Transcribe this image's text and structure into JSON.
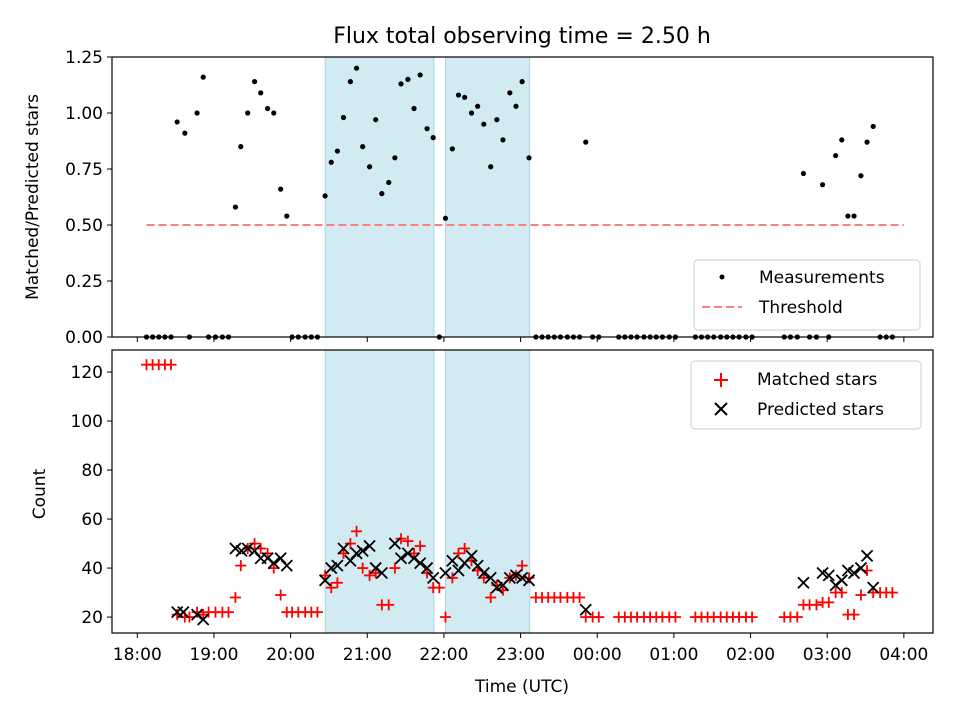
{
  "chart_data": {
    "type": "scatter",
    "title": "Flux total observing time = 2.50 h",
    "xlabel": "Time (UTC)",
    "x_ticks": [
      {
        "h": 18,
        "label": "18:00"
      },
      {
        "h": 19,
        "label": "19:00"
      },
      {
        "h": 20,
        "label": "20:00"
      },
      {
        "h": 21,
        "label": "21:00"
      },
      {
        "h": 22,
        "label": "22:00"
      },
      {
        "h": 23,
        "label": "23:00"
      },
      {
        "h": 24,
        "label": "00:00"
      },
      {
        "h": 25,
        "label": "01:00"
      },
      {
        "h": 26,
        "label": "02:00"
      },
      {
        "h": 27,
        "label": "03:00"
      },
      {
        "h": 28,
        "label": "04:00"
      }
    ],
    "xlim_hours": [
      17.67,
      28.38
    ],
    "shaded_intervals_hours": [
      [
        20.45,
        21.87
      ],
      [
        22.02,
        23.12
      ]
    ],
    "top": {
      "ylabel": "Matched/Predicted stars",
      "ylim": [
        0,
        1.25
      ],
      "yticks": [
        "0.00",
        "0.25",
        "0.50",
        "0.75",
        "1.00",
        "1.25"
      ],
      "threshold": {
        "value": 0.5,
        "x_range": [
          18.12,
          28.0
        ],
        "color": "#ff7f7f"
      },
      "legend": [
        "Measurements",
        "Threshold"
      ],
      "measurements": [
        [
          18.12,
          0
        ],
        [
          18.2,
          0
        ],
        [
          18.28,
          0
        ],
        [
          18.36,
          0
        ],
        [
          18.44,
          0
        ],
        [
          18.52,
          0.96
        ],
        [
          18.62,
          0.91
        ],
        [
          18.68,
          0
        ],
        [
          18.78,
          1.0
        ],
        [
          18.86,
          1.16
        ],
        [
          18.93,
          0
        ],
        [
          19.02,
          0
        ],
        [
          19.11,
          0
        ],
        [
          19.19,
          0
        ],
        [
          19.28,
          0.58
        ],
        [
          19.35,
          0.85
        ],
        [
          19.44,
          1.0
        ],
        [
          19.53,
          1.14
        ],
        [
          19.61,
          1.09
        ],
        [
          19.7,
          1.02
        ],
        [
          19.78,
          1.0
        ],
        [
          19.87,
          0.66
        ],
        [
          19.95,
          0.54
        ],
        [
          20.02,
          0
        ],
        [
          20.1,
          0
        ],
        [
          20.19,
          0
        ],
        [
          20.27,
          0
        ],
        [
          20.35,
          0
        ],
        [
          20.45,
          0.63
        ],
        [
          20.53,
          0.78
        ],
        [
          20.61,
          0.83
        ],
        [
          20.69,
          0.98
        ],
        [
          20.78,
          1.14
        ],
        [
          20.86,
          1.2
        ],
        [
          20.94,
          0.85
        ],
        [
          21.03,
          0.76
        ],
        [
          21.11,
          0.97
        ],
        [
          21.19,
          0.64
        ],
        [
          21.28,
          0.69
        ],
        [
          21.36,
          0.8
        ],
        [
          21.44,
          1.13
        ],
        [
          21.53,
          1.15
        ],
        [
          21.61,
          1.02
        ],
        [
          21.69,
          1.17
        ],
        [
          21.78,
          0.93
        ],
        [
          21.86,
          0.89
        ],
        [
          21.94,
          0
        ],
        [
          22.02,
          0.53
        ],
        [
          22.11,
          0.84
        ],
        [
          22.19,
          1.08
        ],
        [
          22.27,
          1.07
        ],
        [
          22.36,
          1.0
        ],
        [
          22.44,
          1.03
        ],
        [
          22.52,
          0.95
        ],
        [
          22.61,
          0.76
        ],
        [
          22.69,
          0.97
        ],
        [
          22.77,
          0.88
        ],
        [
          22.86,
          1.09
        ],
        [
          22.94,
          1.03
        ],
        [
          23.02,
          1.14
        ],
        [
          23.11,
          0.8
        ],
        [
          23.2,
          0
        ],
        [
          23.28,
          0
        ],
        [
          23.36,
          0
        ],
        [
          23.44,
          0
        ],
        [
          23.52,
          0
        ],
        [
          23.61,
          0
        ],
        [
          23.69,
          0
        ],
        [
          23.77,
          0
        ],
        [
          23.85,
          0.87
        ],
        [
          23.94,
          0
        ],
        [
          24.02,
          0
        ],
        [
          24.28,
          0
        ],
        [
          24.36,
          0
        ],
        [
          24.44,
          0
        ],
        [
          24.52,
          0
        ],
        [
          24.61,
          0
        ],
        [
          24.69,
          0
        ],
        [
          24.77,
          0
        ],
        [
          24.85,
          0
        ],
        [
          24.94,
          0
        ],
        [
          25.02,
          0
        ],
        [
          25.28,
          0
        ],
        [
          25.36,
          0
        ],
        [
          25.44,
          0
        ],
        [
          25.52,
          0
        ],
        [
          25.61,
          0
        ],
        [
          25.69,
          0
        ],
        [
          25.77,
          0
        ],
        [
          25.85,
          0
        ],
        [
          25.94,
          0
        ],
        [
          26.02,
          0
        ],
        [
          26.44,
          0
        ],
        [
          26.52,
          0
        ],
        [
          26.61,
          0
        ],
        [
          26.69,
          0.73
        ],
        [
          26.77,
          0
        ],
        [
          26.86,
          0
        ],
        [
          26.94,
          0.68
        ],
        [
          27.02,
          0
        ],
        [
          27.11,
          0.81
        ],
        [
          27.19,
          0.88
        ],
        [
          27.27,
          0.54
        ],
        [
          27.35,
          0.54
        ],
        [
          27.44,
          0.72
        ],
        [
          27.52,
          0.87
        ],
        [
          27.6,
          0.94
        ],
        [
          27.69,
          0
        ],
        [
          27.77,
          0
        ],
        [
          27.85,
          0
        ]
      ]
    },
    "bottom": {
      "ylabel": "Count",
      "ylim": [
        13.5,
        129
      ],
      "yticks": [
        "20",
        "40",
        "60",
        "80",
        "100",
        "120"
      ],
      "legend": [
        "Matched stars",
        "Predicted stars"
      ],
      "matched_color": "#ff0000",
      "predicted_color": "#000000",
      "matched": [
        [
          18.12,
          123
        ],
        [
          18.2,
          123
        ],
        [
          18.28,
          123
        ],
        [
          18.36,
          123
        ],
        [
          18.44,
          123
        ],
        [
          18.52,
          21
        ],
        [
          18.62,
          20
        ],
        [
          18.68,
          20
        ],
        [
          18.78,
          22
        ],
        [
          18.86,
          21
        ],
        [
          18.93,
          22
        ],
        [
          19.02,
          22
        ],
        [
          19.11,
          22
        ],
        [
          19.19,
          22
        ],
        [
          19.28,
          28
        ],
        [
          19.35,
          41
        ],
        [
          19.44,
          48
        ],
        [
          19.53,
          50
        ],
        [
          19.61,
          48
        ],
        [
          19.7,
          46
        ],
        [
          19.78,
          40
        ],
        [
          19.87,
          29
        ],
        [
          19.95,
          22
        ],
        [
          20.02,
          22
        ],
        [
          20.1,
          22
        ],
        [
          20.19,
          22
        ],
        [
          20.27,
          22
        ],
        [
          20.35,
          22
        ],
        [
          20.45,
          37
        ],
        [
          20.53,
          32
        ],
        [
          20.61,
          34
        ],
        [
          20.69,
          46
        ],
        [
          20.78,
          50
        ],
        [
          20.86,
          55
        ],
        [
          20.94,
          40
        ],
        [
          21.03,
          37
        ],
        [
          21.11,
          38
        ],
        [
          21.19,
          25
        ],
        [
          21.28,
          25
        ],
        [
          21.36,
          40
        ],
        [
          21.44,
          52
        ],
        [
          21.53,
          51
        ],
        [
          21.61,
          46
        ],
        [
          21.69,
          49
        ],
        [
          21.78,
          38
        ],
        [
          21.86,
          32
        ],
        [
          21.94,
          32
        ],
        [
          22.02,
          20
        ],
        [
          22.11,
          36
        ],
        [
          22.19,
          46
        ],
        [
          22.27,
          48
        ],
        [
          22.36,
          43
        ],
        [
          22.44,
          39
        ],
        [
          22.52,
          36
        ],
        [
          22.61,
          28
        ],
        [
          22.69,
          33
        ],
        [
          22.77,
          31
        ],
        [
          22.86,
          36
        ],
        [
          22.94,
          37
        ],
        [
          23.02,
          41
        ],
        [
          23.11,
          36
        ],
        [
          23.2,
          28
        ],
        [
          23.28,
          28
        ],
        [
          23.36,
          28
        ],
        [
          23.44,
          28
        ],
        [
          23.52,
          28
        ],
        [
          23.61,
          28
        ],
        [
          23.69,
          28
        ],
        [
          23.77,
          28
        ],
        [
          23.85,
          20
        ],
        [
          23.94,
          20
        ],
        [
          24.02,
          20
        ],
        [
          24.28,
          20
        ],
        [
          24.36,
          20
        ],
        [
          24.44,
          20
        ],
        [
          24.52,
          20
        ],
        [
          24.61,
          20
        ],
        [
          24.69,
          20
        ],
        [
          24.77,
          20
        ],
        [
          24.85,
          20
        ],
        [
          24.94,
          20
        ],
        [
          25.02,
          20
        ],
        [
          25.28,
          20
        ],
        [
          25.36,
          20
        ],
        [
          25.44,
          20
        ],
        [
          25.52,
          20
        ],
        [
          25.61,
          20
        ],
        [
          25.69,
          20
        ],
        [
          25.77,
          20
        ],
        [
          25.85,
          20
        ],
        [
          25.94,
          20
        ],
        [
          26.02,
          20
        ],
        [
          26.44,
          20
        ],
        [
          26.52,
          20
        ],
        [
          26.61,
          20
        ],
        [
          26.69,
          25
        ],
        [
          26.77,
          25
        ],
        [
          26.86,
          25
        ],
        [
          26.94,
          26
        ],
        [
          27.02,
          26
        ],
        [
          27.11,
          30
        ],
        [
          27.19,
          30
        ],
        [
          27.27,
          21
        ],
        [
          27.35,
          21
        ],
        [
          27.44,
          29
        ],
        [
          27.52,
          39
        ],
        [
          27.6,
          30
        ],
        [
          27.69,
          30
        ],
        [
          27.77,
          30
        ],
        [
          27.85,
          30
        ]
      ],
      "predicted": [
        [
          18.52,
          22
        ],
        [
          18.6,
          22
        ],
        [
          18.78,
          21
        ],
        [
          18.86,
          19
        ],
        [
          19.28,
          48
        ],
        [
          19.36,
          47
        ],
        [
          19.44,
          48
        ],
        [
          19.53,
          47
        ],
        [
          19.61,
          44
        ],
        [
          19.7,
          44
        ],
        [
          19.78,
          42
        ],
        [
          19.87,
          44
        ],
        [
          19.95,
          41
        ],
        [
          20.45,
          35
        ],
        [
          20.53,
          40
        ],
        [
          20.61,
          41
        ],
        [
          20.69,
          48
        ],
        [
          20.78,
          43
        ],
        [
          20.86,
          46
        ],
        [
          20.94,
          47
        ],
        [
          21.03,
          49
        ],
        [
          21.11,
          40
        ],
        [
          21.19,
          38
        ],
        [
          21.36,
          50
        ],
        [
          21.44,
          44
        ],
        [
          21.53,
          46
        ],
        [
          21.61,
          44
        ],
        [
          21.69,
          42
        ],
        [
          21.78,
          40
        ],
        [
          21.86,
          36
        ],
        [
          22.02,
          38
        ],
        [
          22.11,
          43
        ],
        [
          22.19,
          39
        ],
        [
          22.27,
          42
        ],
        [
          22.36,
          45
        ],
        [
          22.44,
          41
        ],
        [
          22.52,
          38
        ],
        [
          22.61,
          36
        ],
        [
          22.69,
          32
        ],
        [
          22.77,
          33
        ],
        [
          22.86,
          36
        ],
        [
          22.94,
          37
        ],
        [
          23.02,
          36
        ],
        [
          23.11,
          35
        ],
        [
          23.85,
          23
        ],
        [
          26.69,
          34
        ],
        [
          26.94,
          38
        ],
        [
          27.02,
          37
        ],
        [
          27.11,
          33
        ],
        [
          27.19,
          35
        ],
        [
          27.27,
          39
        ],
        [
          27.35,
          38
        ],
        [
          27.44,
          40
        ],
        [
          27.52,
          45
        ],
        [
          27.6,
          32
        ]
      ]
    }
  }
}
